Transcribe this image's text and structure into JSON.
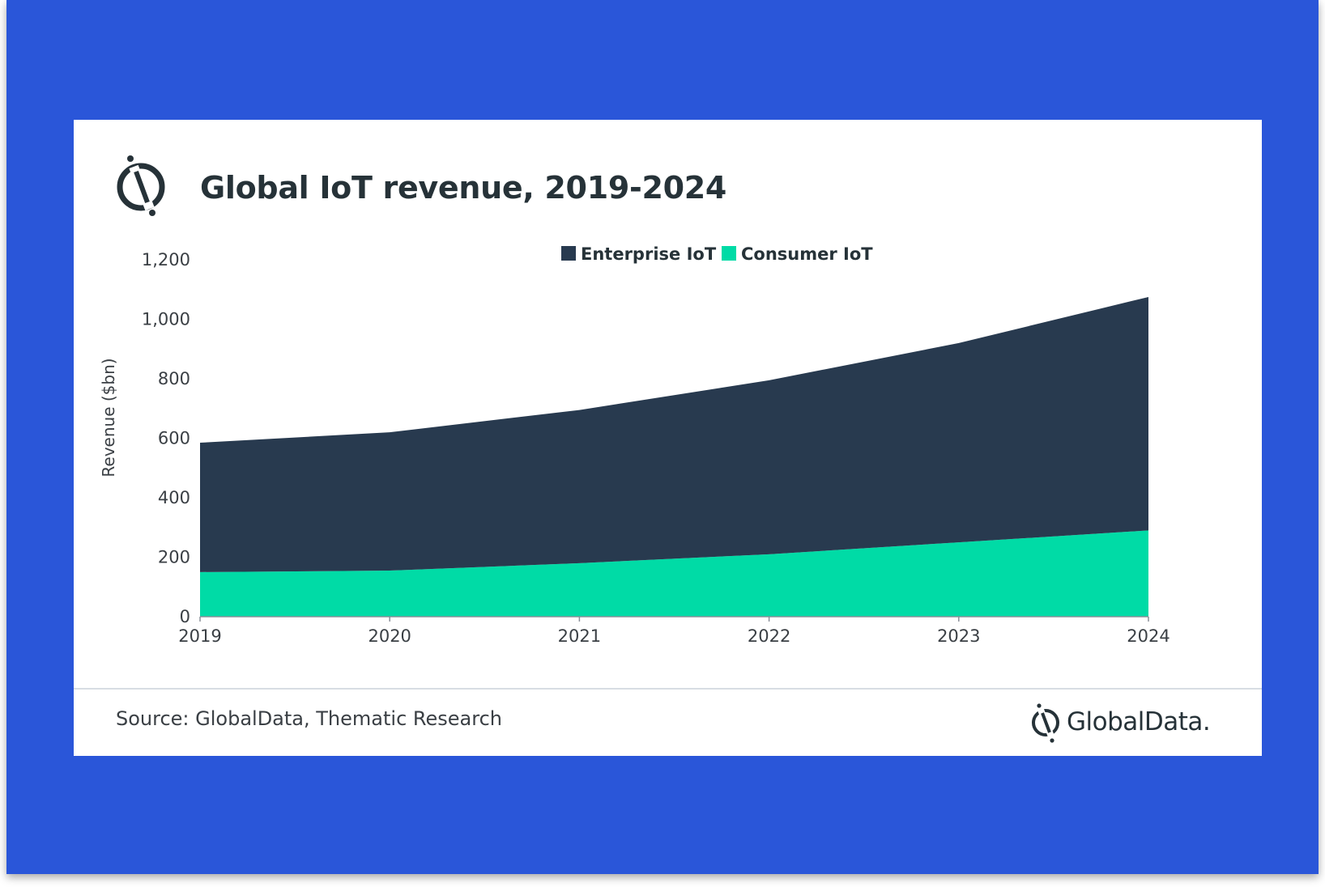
{
  "title": "Global IoT revenue, 2019-2024",
  "source": "Source: GlobalData, Thematic Research",
  "brand": "GlobalData.",
  "colors": {
    "frame": "#2a56d9",
    "enterprise": "#283a4f",
    "consumer": "#00dba6",
    "text": "#263238"
  },
  "icons": {
    "title_logo": "globaldata-logo-icon",
    "brand_logo": "globaldata-logo-icon"
  },
  "chart_data": {
    "type": "area",
    "stacked": true,
    "title": "Global IoT revenue, 2019-2024",
    "xlabel": "",
    "ylabel": "Revenue ($bn)",
    "ylim": [
      0,
      1200
    ],
    "yticks": [
      0,
      200,
      400,
      600,
      800,
      1000,
      1200
    ],
    "y_tick_labels": [
      "0",
      "200",
      "400",
      "600",
      "800",
      "1,000",
      "1,200"
    ],
    "x": [
      "2019",
      "2020",
      "2021",
      "2022",
      "2023",
      "2024"
    ],
    "series": [
      {
        "name": "Consumer IoT",
        "color": "#00dba6",
        "values": [
          150,
          155,
          180,
          210,
          250,
          290
        ]
      },
      {
        "name": "Enterprise IoT",
        "color": "#283a4f",
        "values": [
          435,
          465,
          515,
          585,
          670,
          785
        ]
      }
    ],
    "legend": {
      "position": "top-center",
      "order": [
        "Enterprise IoT",
        "Consumer IoT"
      ]
    },
    "grid": false
  }
}
